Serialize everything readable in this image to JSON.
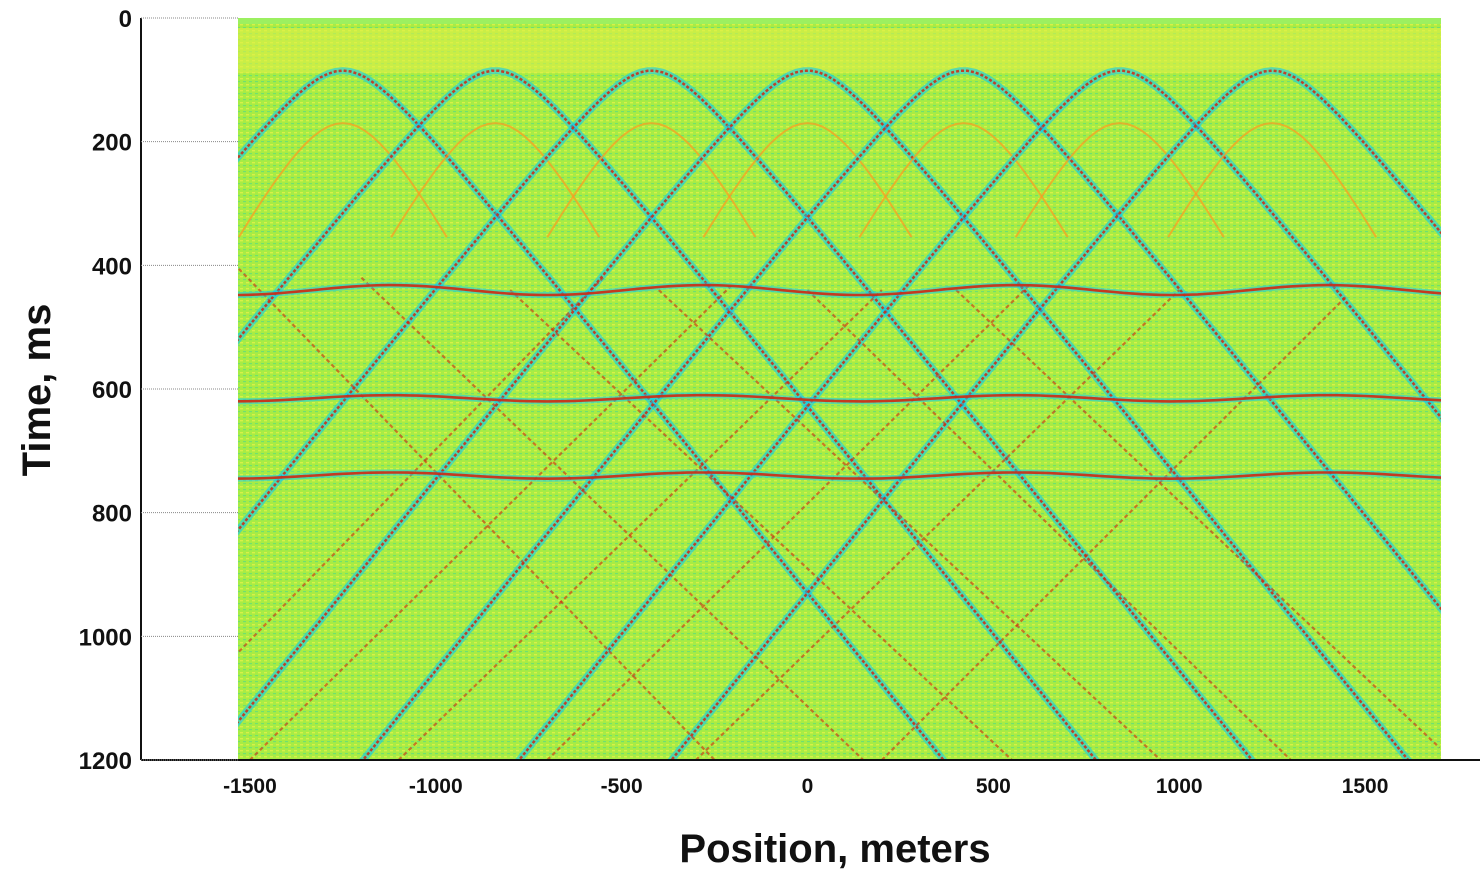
{
  "chart_data": {
    "type": "heatmap",
    "title": "",
    "xlabel": "Position, meters",
    "ylabel": "Time, ms",
    "xlim": [
      -1750,
      1750
    ],
    "ylim": [
      0,
      1200
    ],
    "y_inverted": true,
    "x_ticks": [
      -1500,
      -1000,
      -500,
      0,
      500,
      1000,
      1500
    ],
    "y_ticks": [
      0,
      200,
      400,
      600,
      800,
      1000,
      1200
    ],
    "x_tick_labels": [
      "-1500",
      "-1000",
      "-500",
      "0",
      "500",
      "1000",
      "1500"
    ],
    "y_tick_labels": [
      "0",
      "200",
      "400",
      "600",
      "800",
      "1000",
      "1200"
    ],
    "grid": false,
    "legend": "none",
    "colormap": [
      "#00c8ff",
      "#40e8c8",
      "#a8f040",
      "#e8f040",
      "#ff9a20",
      "#d02810"
    ],
    "background_color": "#a8ec44",
    "sources_x": [
      -1250,
      -840,
      -420,
      0,
      420,
      840,
      1250
    ],
    "direct_wave_apex_ms": 85,
    "reflector_ms": [
      440,
      615,
      740
    ],
    "series": []
  }
}
